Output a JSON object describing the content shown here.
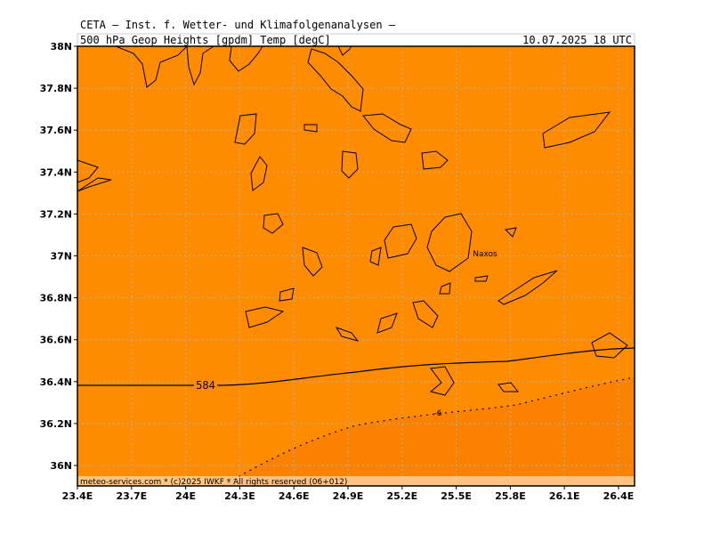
{
  "header": {
    "title": "CETA – Inst. f. Wetter- und Klimafolgenanalysen –",
    "subtitle": "500 hPa Geop Heights [gpdm] Temp [degC]",
    "valid_time": "10.07.2025 18 UTC"
  },
  "lat_labels": [
    "38N",
    "37.8N",
    "37.6N",
    "37.4N",
    "37.2N",
    "37N",
    "36.8N",
    "36.6N",
    "36.4N",
    "36.2N",
    "36N"
  ],
  "lon_labels": [
    "23.4E",
    "23.7E",
    "24E",
    "24.3E",
    "24.6E",
    "24.9E",
    "25.2E",
    "25.5E",
    "25.8E",
    "26.1E",
    "26.4E"
  ],
  "contours": {
    "height_label": "584",
    "temperature_label": "-6"
  },
  "places": [
    "Naxos"
  ],
  "footer": "meteo-services.com * (c)2025 IWKF * All rights reserved (06+012)"
}
